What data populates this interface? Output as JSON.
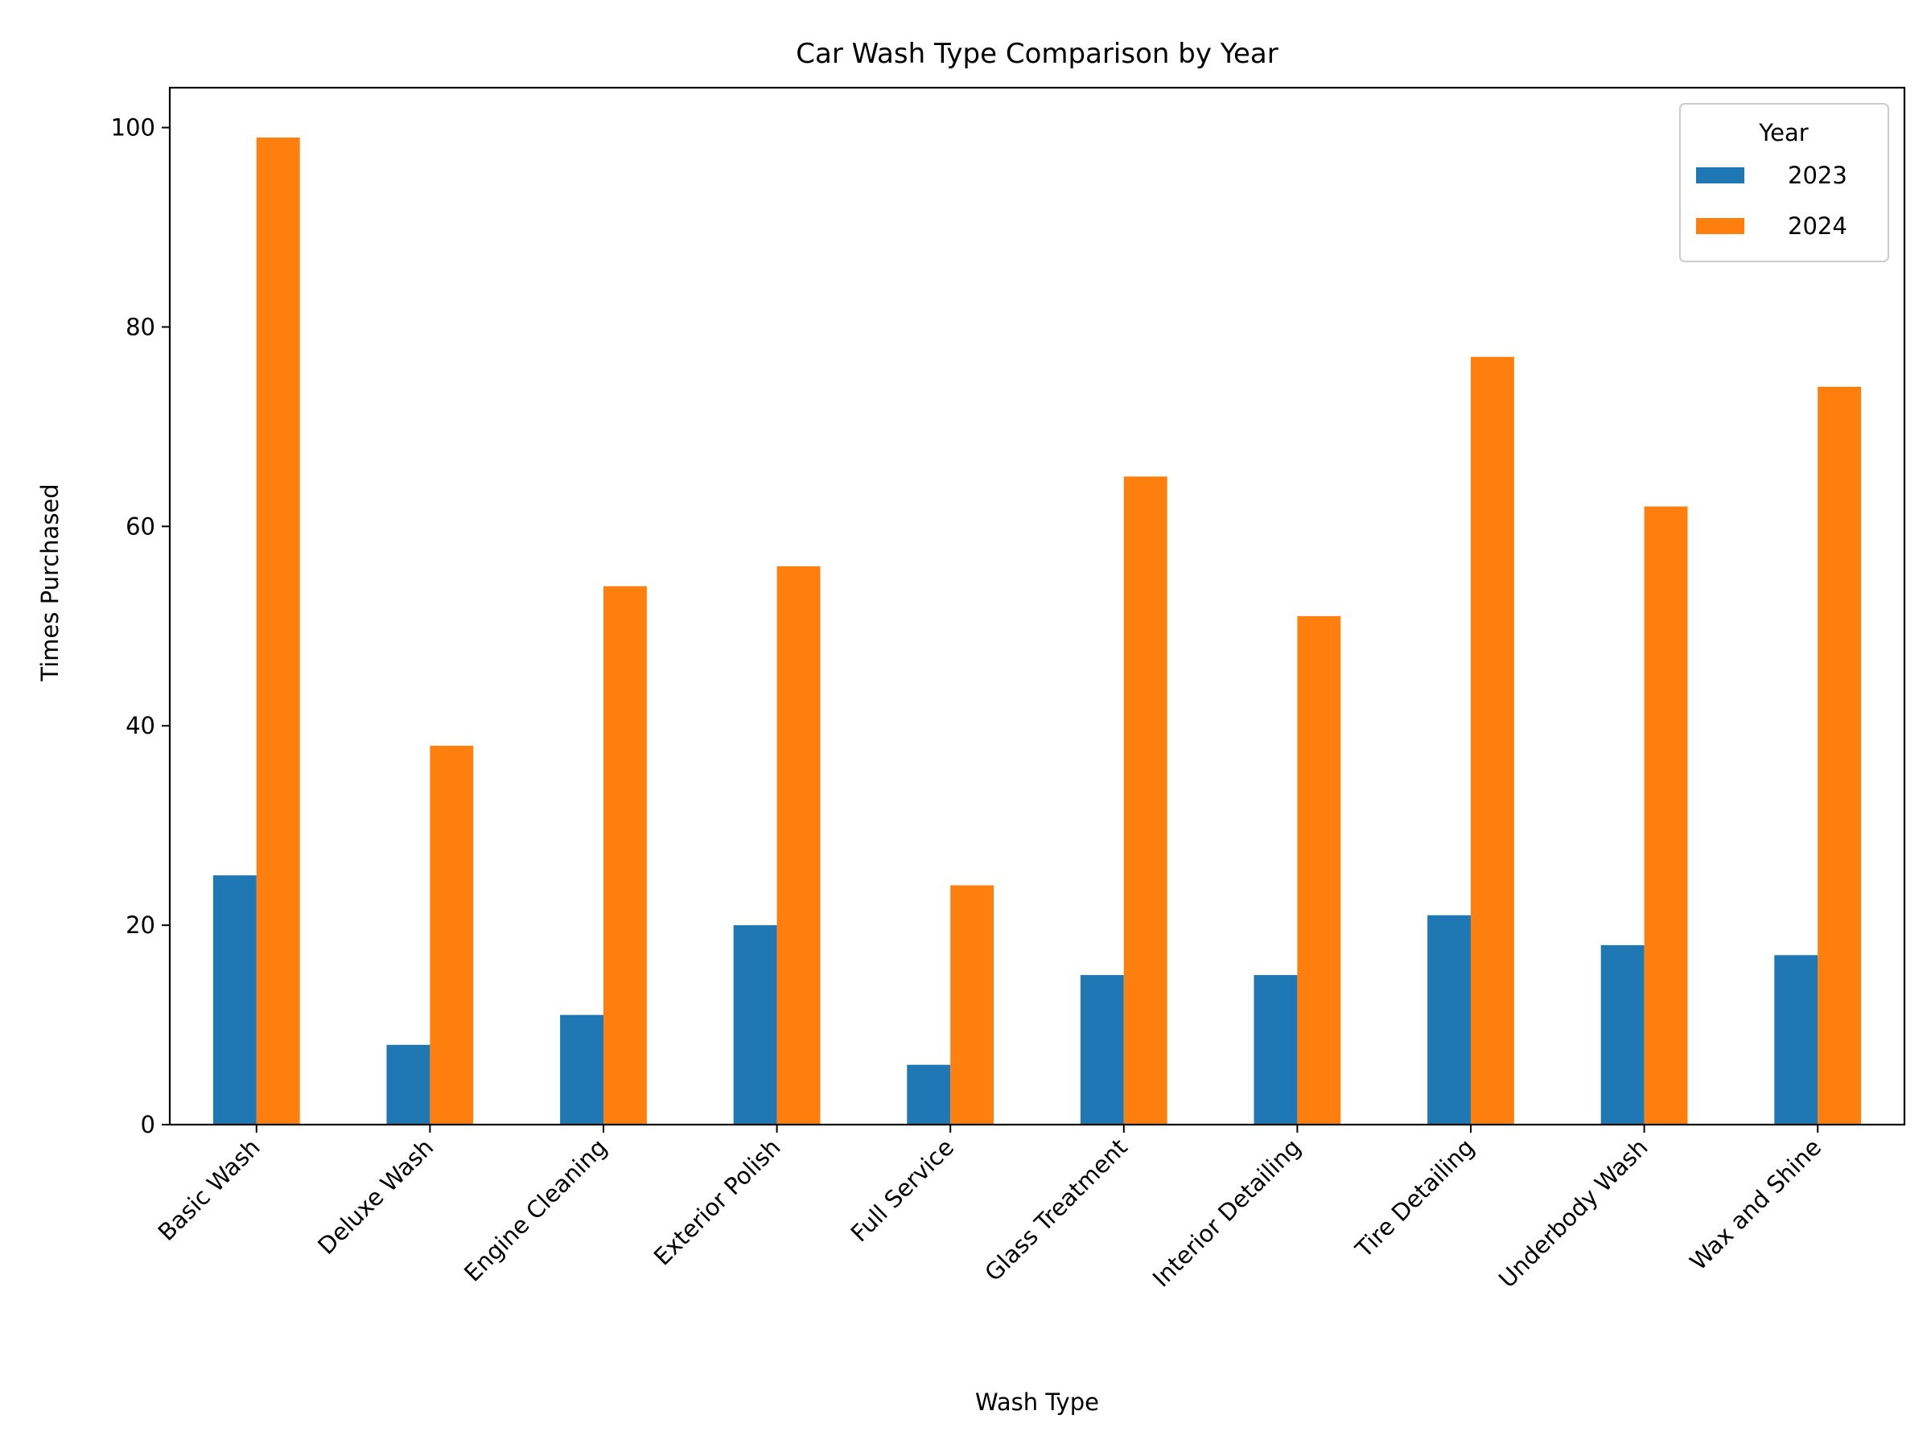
{
  "chart_data": {
    "type": "bar",
    "title": "Car Wash Type Comparison by Year",
    "xlabel": "Wash Type",
    "ylabel": "Times Purchased",
    "categories": [
      "Basic Wash",
      "Deluxe Wash",
      "Engine Cleaning",
      "Exterior Polish",
      "Full Service",
      "Glass Treatment",
      "Interior Detailing",
      "Tire Detailing",
      "Underbody Wash",
      "Wax and Shine"
    ],
    "series": [
      {
        "name": "2023",
        "color": "#1f77b4",
        "values": [
          25,
          8,
          11,
          20,
          6,
          15,
          15,
          21,
          18,
          17
        ]
      },
      {
        "name": "2024",
        "color": "#ff7f0e",
        "values": [
          99,
          38,
          54,
          56,
          24,
          65,
          51,
          77,
          62,
          74
        ]
      }
    ],
    "ylim": [
      0,
      104
    ],
    "yticks": [
      0,
      20,
      40,
      60,
      80,
      100
    ],
    "grid": false,
    "legend": {
      "title": "Year",
      "placement": "top-right"
    }
  }
}
